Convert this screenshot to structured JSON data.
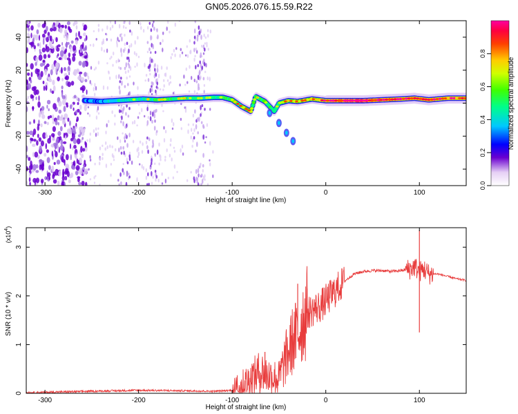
{
  "title": "GN05.2026.076.15.59.R22",
  "chart_data": [
    {
      "type": "heatmap",
      "name": "spectrogram",
      "xlabel": "Height of straight line (km)",
      "ylabel": "Frequency (Hz)",
      "xlim": [
        -320,
        150
      ],
      "ylim": [
        -50,
        50
      ],
      "xticks": [
        -300,
        -200,
        -100,
        0,
        100
      ],
      "xtick_labels": [
        "-300",
        "-200",
        "-100",
        "0",
        "100"
      ],
      "yticks": [
        -40,
        -20,
        0,
        20,
        40
      ],
      "ytick_labels": [
        "-40",
        "-20",
        "0",
        "20",
        "40"
      ],
      "ridge": [
        {
          "x": -255,
          "y": 1.5,
          "amp": 0.35
        },
        {
          "x": -240,
          "y": 1.0,
          "amp": 0.35
        },
        {
          "x": -225,
          "y": 1.5,
          "amp": 0.4
        },
        {
          "x": -210,
          "y": 2.0,
          "amp": 0.45
        },
        {
          "x": -195,
          "y": 2.5,
          "amp": 0.5
        },
        {
          "x": -180,
          "y": 2.0,
          "amp": 0.55
        },
        {
          "x": -165,
          "y": 2.5,
          "amp": 0.55
        },
        {
          "x": -150,
          "y": 3.0,
          "amp": 0.55
        },
        {
          "x": -135,
          "y": 3.0,
          "amp": 0.5
        },
        {
          "x": -120,
          "y": 3.5,
          "amp": 0.5
        },
        {
          "x": -110,
          "y": 3.5,
          "amp": 0.55
        },
        {
          "x": -100,
          "y": 2.0,
          "amp": 0.6
        },
        {
          "x": -90,
          "y": -2.0,
          "amp": 0.65
        },
        {
          "x": -80,
          "y": -5.0,
          "amp": 0.7
        },
        {
          "x": -75,
          "y": 4.0,
          "amp": 0.55
        },
        {
          "x": -65,
          "y": 1.0,
          "amp": 0.55
        },
        {
          "x": -55,
          "y": -5.0,
          "amp": 0.5
        },
        {
          "x": -50,
          "y": 0.0,
          "amp": 0.6
        },
        {
          "x": -40,
          "y": 1.5,
          "amp": 0.65
        },
        {
          "x": -30,
          "y": 1.0,
          "amp": 0.7
        },
        {
          "x": -15,
          "y": 2.5,
          "amp": 0.7
        },
        {
          "x": 0,
          "y": 1.5,
          "amp": 0.8
        },
        {
          "x": 20,
          "y": 1.5,
          "amp": 0.9
        },
        {
          "x": 40,
          "y": 1.5,
          "amp": 0.95
        },
        {
          "x": 60,
          "y": 2.0,
          "amp": 0.85
        },
        {
          "x": 80,
          "y": 2.5,
          "amp": 0.9
        },
        {
          "x": 95,
          "y": 3.0,
          "amp": 0.85
        },
        {
          "x": 110,
          "y": 2.0,
          "amp": 0.85
        },
        {
          "x": 130,
          "y": 3.0,
          "amp": 0.8
        },
        {
          "x": 150,
          "y": 3.0,
          "amp": 0.8
        }
      ],
      "branch": [
        {
          "x": -60,
          "y": -6.0
        },
        {
          "x": -50,
          "y": -12.0
        },
        {
          "x": -42,
          "y": -18.0
        },
        {
          "x": -35,
          "y": -23.0
        }
      ],
      "noise_region_km": [
        -320,
        -255
      ],
      "stripe_centers_km": [
        -215,
        -185,
        -135
      ]
    },
    {
      "type": "colorbar",
      "name": "amplitude-colorbar",
      "label": "Normalized spectral amplitude",
      "range": [
        0.0,
        1.0
      ],
      "ticks": [
        0.0,
        0.2,
        0.4,
        0.6,
        0.8
      ],
      "tick_labels": [
        "0.0",
        "0.2",
        "0.4",
        "0.6",
        "0.8"
      ]
    },
    {
      "type": "line",
      "name": "snr-trace",
      "xlabel": "Height of straight line (km)",
      "ylabel": "SNR (10 * v/v)",
      "y_multiplier": "(x10",
      "y_multiplier_exp": "4",
      "y_multiplier_close": ")",
      "xlim": [
        -320,
        150
      ],
      "ylim": [
        0,
        3.4
      ],
      "xticks": [
        -300,
        -200,
        -100,
        0,
        100
      ],
      "xtick_labels": [
        "-300",
        "-200",
        "-100",
        "0",
        "100"
      ],
      "yticks": [
        0,
        1,
        2,
        3
      ],
      "ytick_labels": [
        "0",
        "1",
        "2",
        "3"
      ],
      "color": "#e83c3c",
      "series": [
        {
          "name": "SNR",
          "x": [
            -320,
            -300,
            -250,
            -200,
            -150,
            -120,
            -100,
            -90,
            -80,
            -70,
            -60,
            -50,
            -45,
            -40,
            -35,
            -30,
            -25,
            -20,
            -15,
            -10,
            -5,
            0,
            10,
            20,
            30,
            40,
            50,
            60,
            70,
            80,
            90,
            95,
            100,
            105,
            110,
            120,
            130,
            140,
            150
          ],
          "y": [
            0.0,
            0.01,
            0.03,
            0.05,
            0.04,
            0.03,
            0.05,
            0.15,
            0.3,
            0.45,
            0.35,
            0.3,
            0.6,
            0.85,
            1.1,
            1.2,
            1.5,
            1.65,
            1.7,
            1.75,
            1.8,
            1.9,
            2.1,
            2.3,
            2.45,
            2.5,
            2.52,
            2.52,
            2.5,
            2.52,
            2.55,
            2.6,
            2.5,
            2.55,
            2.45,
            2.45,
            2.4,
            2.35,
            2.32
          ],
          "spikes": [
            {
              "x": 100,
              "y": 3.35
            },
            {
              "x": 100,
              "y": 1.25
            },
            {
              "x": -30,
              "y": 2.25
            },
            {
              "x": -20,
              "y": 2.15
            },
            {
              "x": -65,
              "y": 0.85
            }
          ]
        }
      ]
    }
  ]
}
